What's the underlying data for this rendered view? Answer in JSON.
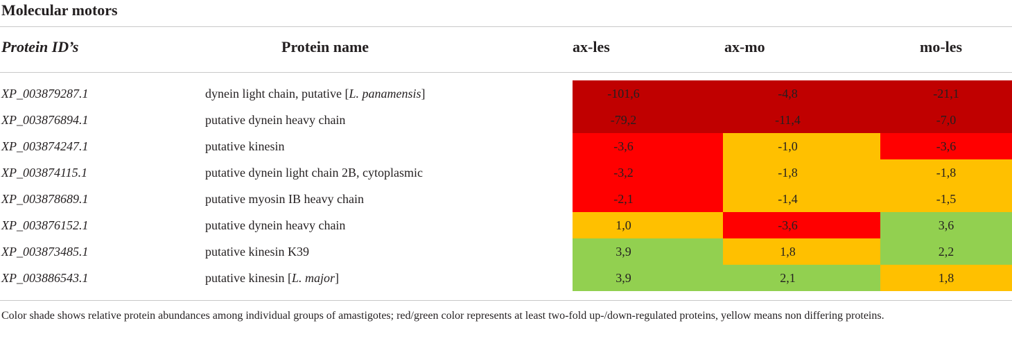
{
  "title": "Molecular motors",
  "headers": {
    "protein_id": "Protein ID’s",
    "protein_name": "Protein name",
    "ax_les": "ax-les",
    "ax_mo": "ax-mo",
    "mo_les": "mo-les"
  },
  "colors": {
    "dark_red": "#c00000",
    "red": "#ff0000",
    "yellow": "#ffc000",
    "green": "#92d050"
  },
  "rows": [
    {
      "id": "XP_003879287.1",
      "name_pre": "dynein light chain, putative [",
      "name_it": "L. panamensis",
      "name_post": "]",
      "ax_les": "-101,6",
      "ax_les_c": "#c00000",
      "ax_mo": "-4,8",
      "ax_mo_c": "#c00000",
      "mo_les": "-21,1",
      "mo_les_c": "#c00000"
    },
    {
      "id": "XP_003876894.1",
      "name_pre": "putative dynein heavy chain",
      "name_it": "",
      "name_post": "",
      "ax_les": "-79,2",
      "ax_les_c": "#c00000",
      "ax_mo": "-11,4",
      "ax_mo_c": "#c00000",
      "mo_les": "-7,0",
      "mo_les_c": "#c00000"
    },
    {
      "id": "XP_003874247.1",
      "name_pre": "putative kinesin",
      "name_it": "",
      "name_post": "",
      "ax_les": "-3,6",
      "ax_les_c": "#ff0000",
      "ax_mo": "-1,0",
      "ax_mo_c": "#ffc000",
      "mo_les": "-3,6",
      "mo_les_c": "#ff0000"
    },
    {
      "id": "XP_003874115.1",
      "name_pre": "putative dynein light chain 2B, cytoplasmic",
      "name_it": "",
      "name_post": "",
      "ax_les": "-3,2",
      "ax_les_c": "#ff0000",
      "ax_mo": "-1,8",
      "ax_mo_c": "#ffc000",
      "mo_les": "-1,8",
      "mo_les_c": "#ffc000"
    },
    {
      "id": "XP_003878689.1",
      "name_pre": "putative myosin IB heavy chain",
      "name_it": "",
      "name_post": "",
      "ax_les": "-2,1",
      "ax_les_c": "#ff0000",
      "ax_mo": "-1,4",
      "ax_mo_c": "#ffc000",
      "mo_les": "-1,5",
      "mo_les_c": "#ffc000"
    },
    {
      "id": "XP_003876152.1",
      "name_pre": "putative dynein heavy chain",
      "name_it": "",
      "name_post": "",
      "ax_les": "1,0",
      "ax_les_c": "#ffc000",
      "ax_mo": "-3,6",
      "ax_mo_c": "#ff0000",
      "mo_les": "3,6",
      "mo_les_c": "#92d050"
    },
    {
      "id": "XP_003873485.1",
      "name_pre": "putative kinesin K39",
      "name_it": "",
      "name_post": "",
      "ax_les": "3,9",
      "ax_les_c": "#92d050",
      "ax_mo": "1,8",
      "ax_mo_c": "#ffc000",
      "mo_les": "2,2",
      "mo_les_c": "#92d050"
    },
    {
      "id": "XP_003886543.1",
      "name_pre": "putative kinesin [",
      "name_it": "L. major",
      "name_post": "]",
      "ax_les": "3,9",
      "ax_les_c": "#92d050",
      "ax_mo": "2,1",
      "ax_mo_c": "#92d050",
      "mo_les": "1,8",
      "mo_les_c": "#ffc000"
    }
  ],
  "footnote": "Color shade shows relative protein abundances among individual groups of amastigotes; red/green color represents at least two-fold up-/down-regulated proteins, yellow means non differing proteins."
}
